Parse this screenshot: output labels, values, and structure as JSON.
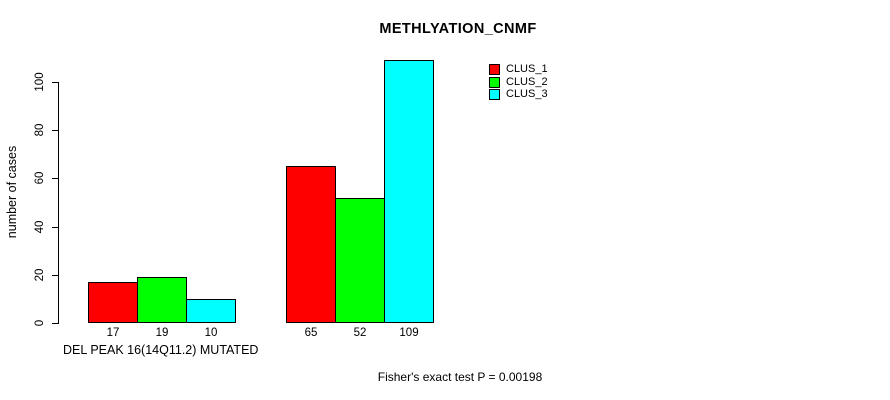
{
  "chart_data": {
    "type": "bar",
    "title": "METHLYATION_CNMF",
    "ylabel": "number of cases",
    "xlabel": "DEL PEAK 16(14Q11.2) MUTATED",
    "annotation": "Fisher's exact test P = 0.00198",
    "categories": [
      "DEL PEAK 16(14Q11.2) MUTATED",
      ""
    ],
    "series": [
      {
        "name": "CLUS_1",
        "color": "#ff0000",
        "values": [
          17,
          65
        ]
      },
      {
        "name": "CLUS_2",
        "color": "#00ff00",
        "values": [
          19,
          52
        ]
      },
      {
        "name": "CLUS_3",
        "color": "#00ffff",
        "values": [
          10,
          109
        ]
      }
    ],
    "bar_value_labels": [
      [
        17,
        19,
        10
      ],
      [
        65,
        52,
        109
      ]
    ],
    "yticks": [
      0,
      20,
      40,
      60,
      80,
      100
    ],
    "ylim": [
      0,
      113
    ],
    "legend": [
      "CLUS_1",
      "CLUS_2",
      "CLUS_3"
    ],
    "legend_position": "top-right",
    "grid": false,
    "background": "#ffffff",
    "axis_color": "#000000"
  }
}
